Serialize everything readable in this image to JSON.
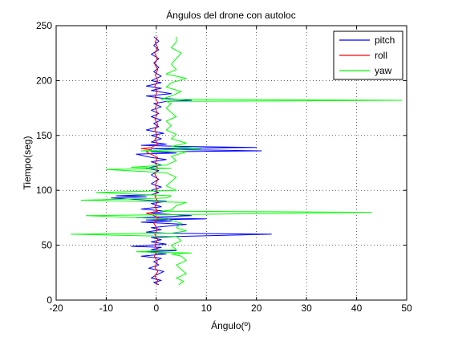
{
  "chart_data": {
    "type": "line",
    "title": "Ángulos del drone con autoloc",
    "xlabel": "Ángulo(º)",
    "ylabel": "Tiempo(seg)",
    "xlim": [
      -20,
      50
    ],
    "ylim": [
      0,
      250
    ],
    "xticks": [
      -20,
      -10,
      0,
      10,
      20,
      30,
      40,
      50
    ],
    "yticks": [
      0,
      50,
      100,
      150,
      200,
      250
    ],
    "xtick_labels": [
      "-20",
      "-10",
      "0",
      "10",
      "20",
      "30",
      "40",
      "50"
    ],
    "ytick_labels": [
      "0",
      "50",
      "100",
      "150",
      "200",
      "250"
    ],
    "grid": true,
    "legend_position": "top-right",
    "series": [
      {
        "name": "pitch",
        "color": "#0000ff",
        "points": [
          [
            0.5,
            14
          ],
          [
            -0.5,
            16
          ],
          [
            1,
            18
          ],
          [
            -1,
            20
          ],
          [
            0,
            23
          ],
          [
            1.5,
            26
          ],
          [
            -1.5,
            29
          ],
          [
            0.5,
            32
          ],
          [
            -0.5,
            35
          ],
          [
            1,
            38
          ],
          [
            -3,
            40
          ],
          [
            2,
            42
          ],
          [
            -2,
            44
          ],
          [
            4,
            45
          ],
          [
            -1,
            46
          ],
          [
            1,
            48
          ],
          [
            -5,
            49
          ],
          [
            2,
            51
          ],
          [
            -1,
            53
          ],
          [
            1,
            55
          ],
          [
            -1,
            57
          ],
          [
            4,
            58
          ],
          [
            23,
            60
          ],
          [
            2,
            61
          ],
          [
            -2,
            62
          ],
          [
            1,
            64
          ],
          [
            -1,
            66
          ],
          [
            6,
            69
          ],
          [
            -3,
            71
          ],
          [
            3,
            72
          ],
          [
            -2,
            73
          ],
          [
            10,
            74
          ],
          [
            -4,
            75
          ],
          [
            7,
            77
          ],
          [
            -1,
            79
          ],
          [
            2,
            81
          ],
          [
            -3,
            83
          ],
          [
            1,
            85
          ],
          [
            -1,
            88
          ],
          [
            2,
            90
          ],
          [
            -9,
            93
          ],
          [
            -2,
            94
          ],
          [
            -8,
            95
          ],
          [
            -1,
            96
          ],
          [
            0.5,
            98
          ],
          [
            -1,
            100
          ],
          [
            1,
            103
          ],
          [
            -1,
            106
          ],
          [
            0.5,
            110
          ],
          [
            -1,
            114
          ],
          [
            0.5,
            118
          ],
          [
            -2,
            120
          ],
          [
            1,
            123
          ],
          [
            -1,
            126
          ],
          [
            2,
            128
          ],
          [
            -1,
            130
          ],
          [
            -4,
            133
          ],
          [
            4,
            134
          ],
          [
            -1,
            135
          ],
          [
            21,
            136
          ],
          [
            6,
            137
          ],
          [
            -1,
            138
          ],
          [
            20,
            139
          ],
          [
            5,
            140
          ],
          [
            -3,
            141
          ],
          [
            2,
            142
          ],
          [
            -1,
            144
          ],
          [
            1,
            147
          ],
          [
            -1,
            150
          ],
          [
            1.5,
            152
          ],
          [
            -2,
            155
          ],
          [
            0.5,
            158
          ],
          [
            -0.5,
            161
          ],
          [
            1,
            164
          ],
          [
            -1,
            167
          ],
          [
            0.5,
            170
          ],
          [
            -1,
            173
          ],
          [
            1,
            176
          ],
          [
            -0.5,
            179
          ],
          [
            2,
            181
          ],
          [
            7,
            182
          ],
          [
            1,
            184
          ],
          [
            -2,
            186
          ],
          [
            3,
            188
          ],
          [
            -1,
            191
          ],
          [
            1,
            193
          ],
          [
            -2,
            195
          ],
          [
            1,
            198
          ],
          [
            -1,
            200
          ],
          [
            1,
            204
          ],
          [
            -0.5,
            208
          ],
          [
            0.5,
            212
          ],
          [
            -0.5,
            216
          ],
          [
            0.5,
            220
          ],
          [
            -1,
            224
          ],
          [
            0.5,
            228
          ],
          [
            -0.5,
            232
          ],
          [
            0.5,
            236
          ],
          [
            -0.5,
            240
          ]
        ]
      },
      {
        "name": "roll",
        "color": "#ff0000",
        "points": [
          [
            0,
            14
          ],
          [
            0.3,
            18
          ],
          [
            -0.3,
            22
          ],
          [
            0.3,
            26
          ],
          [
            -0.3,
            30
          ],
          [
            0.2,
            35
          ],
          [
            -0.4,
            40
          ],
          [
            0.3,
            45
          ],
          [
            -0.3,
            50
          ],
          [
            0.3,
            55
          ],
          [
            -0.3,
            60
          ],
          [
            0.2,
            65
          ],
          [
            -0.5,
            70
          ],
          [
            0.5,
            75
          ],
          [
            -1,
            78
          ],
          [
            -2,
            79
          ],
          [
            0.3,
            81
          ],
          [
            -0.3,
            85
          ],
          [
            0.3,
            90
          ],
          [
            -0.3,
            95
          ],
          [
            0.2,
            100
          ],
          [
            -0.2,
            105
          ],
          [
            0.3,
            110
          ],
          [
            -0.3,
            115
          ],
          [
            0.3,
            120
          ],
          [
            -0.2,
            125
          ],
          [
            0.3,
            130
          ],
          [
            -2,
            135
          ],
          [
            -1,
            137
          ],
          [
            -3,
            138
          ],
          [
            -1,
            139
          ],
          [
            0.3,
            142
          ],
          [
            -0.3,
            146
          ],
          [
            0.2,
            150
          ],
          [
            -0.3,
            155
          ],
          [
            0.3,
            160
          ],
          [
            -0.3,
            165
          ],
          [
            0.3,
            170
          ],
          [
            -0.2,
            175
          ],
          [
            0.3,
            180
          ],
          [
            -0.3,
            185
          ],
          [
            0.2,
            190
          ],
          [
            -0.3,
            195
          ],
          [
            0.3,
            200
          ],
          [
            -0.2,
            205
          ],
          [
            0.3,
            210
          ],
          [
            -0.3,
            215
          ],
          [
            0.2,
            220
          ],
          [
            -0.3,
            225
          ],
          [
            0.3,
            230
          ],
          [
            -0.2,
            235
          ],
          [
            0.2,
            240
          ]
        ]
      },
      {
        "name": "yaw",
        "color": "#00ff00",
        "points": [
          [
            4.5,
            14
          ],
          [
            5.5,
            17
          ],
          [
            4,
            20
          ],
          [
            6,
            24
          ],
          [
            5,
            28
          ],
          [
            4,
            32
          ],
          [
            6,
            36
          ],
          [
            5,
            40
          ],
          [
            3,
            42
          ],
          [
            7,
            43
          ],
          [
            -4,
            44
          ],
          [
            4,
            46
          ],
          [
            3,
            50
          ],
          [
            5,
            54
          ],
          [
            4,
            58
          ],
          [
            -17,
            60
          ],
          [
            3,
            61
          ],
          [
            6,
            63
          ],
          [
            4,
            66
          ],
          [
            5,
            70
          ],
          [
            2,
            74
          ],
          [
            -14,
            77
          ],
          [
            43,
            80
          ],
          [
            1,
            81
          ],
          [
            3,
            82
          ],
          [
            4,
            86
          ],
          [
            6,
            89
          ],
          [
            -15,
            91
          ],
          [
            2,
            93
          ],
          [
            3,
            95
          ],
          [
            -12,
            98
          ],
          [
            4,
            100
          ],
          [
            2,
            104
          ],
          [
            3,
            108
          ],
          [
            4,
            112
          ],
          [
            2,
            116
          ],
          [
            -10,
            119
          ],
          [
            3,
            120
          ],
          [
            -5,
            121
          ],
          [
            2,
            123
          ],
          [
            4,
            127
          ],
          [
            3,
            131
          ],
          [
            6,
            135
          ],
          [
            -3,
            136
          ],
          [
            9,
            138
          ],
          [
            3,
            140
          ],
          [
            6,
            143
          ],
          [
            3,
            147
          ],
          [
            4,
            151
          ],
          [
            2,
            155
          ],
          [
            3,
            159
          ],
          [
            2,
            163
          ],
          [
            4,
            167
          ],
          [
            3,
            171
          ],
          [
            2,
            175
          ],
          [
            3,
            179
          ],
          [
            2,
            181
          ],
          [
            49,
            182
          ],
          [
            1,
            183
          ],
          [
            3,
            186
          ],
          [
            5,
            190
          ],
          [
            2,
            194
          ],
          [
            3,
            198
          ],
          [
            6,
            202
          ],
          [
            2,
            206
          ],
          [
            4,
            210
          ],
          [
            3,
            215
          ],
          [
            4,
            220
          ],
          [
            5,
            225
          ],
          [
            3,
            230
          ],
          [
            4,
            235
          ],
          [
            4,
            240
          ]
        ]
      }
    ]
  }
}
